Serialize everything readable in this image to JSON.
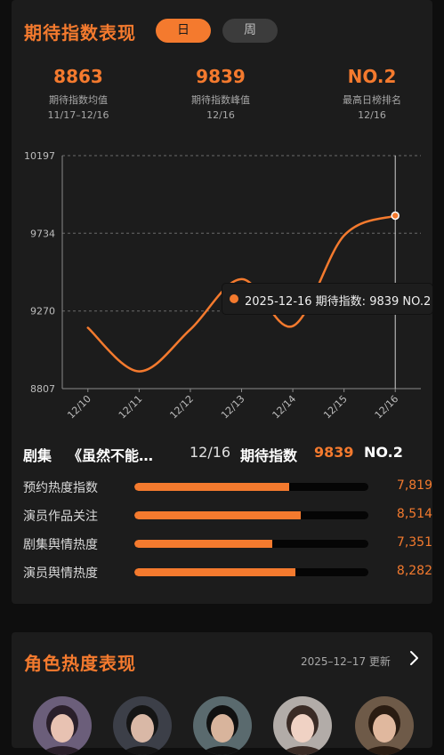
{
  "section1": {
    "title": "期待指数表现",
    "tabs": [
      {
        "label": "日",
        "active": true
      },
      {
        "label": "周",
        "active": false
      }
    ],
    "stats": [
      {
        "value": "8863",
        "label": "期待指数均值",
        "date": "11/17–12/16"
      },
      {
        "value": "9839",
        "label": "期待指数峰值",
        "date": "12/16"
      },
      {
        "value": "NO.2",
        "label": "最高日榜排名",
        "date": "12/16"
      }
    ],
    "tooltip": "2025-12-16 期待指数: 9839 NO.2",
    "series": {
      "label": "剧集",
      "name": "《虽然不能…",
      "date": "12/16",
      "metric": "期待指数",
      "value": "9839",
      "rank": "NO.2"
    },
    "metrics": [
      {
        "label": "预约热度指数",
        "value": "7,819",
        "fill": 0.66
      },
      {
        "label": "演员作品关注",
        "value": "8,514",
        "fill": 0.71
      },
      {
        "label": "剧集舆情热度",
        "value": "7,351",
        "fill": 0.59
      },
      {
        "label": "演员舆情热度",
        "value": "8,282",
        "fill": 0.69
      }
    ]
  },
  "section2": {
    "title": "角色热度表现",
    "updated": "2025–12–17 更新",
    "avatar_count": 5
  },
  "colors": {
    "accent": "#f47a2e",
    "card": "#1c1c1c",
    "background": "#0e0e0e"
  },
  "chart_data": {
    "type": "line",
    "x": [
      "12/10",
      "12/11",
      "12/12",
      "12/13",
      "12/14",
      "12/15",
      "12/16"
    ],
    "y_ticks": [
      "10197",
      "9734",
      "9270",
      "8807"
    ],
    "ylim": [
      8807,
      10197
    ],
    "series": [
      {
        "values": [
          9170,
          8910,
          9160,
          9460,
          9180,
          9720,
          9839
        ]
      }
    ],
    "highlight_index": 6,
    "grid": true,
    "line_color": "#f47a2e"
  }
}
